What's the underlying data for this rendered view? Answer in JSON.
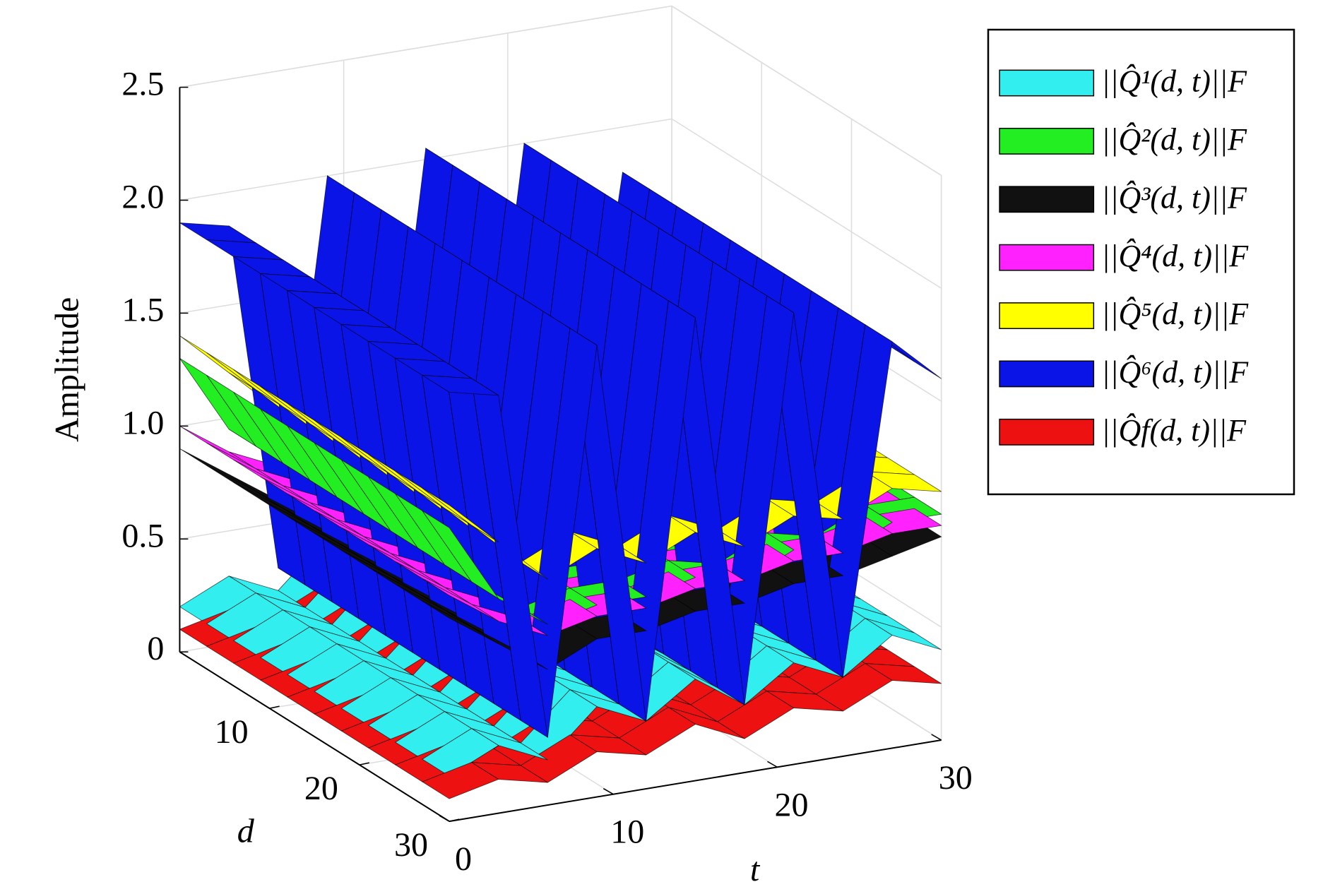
{
  "chart_data": {
    "type": "surface3d",
    "zlabel": "Amplitude",
    "xlabel": "t",
    "ylabel": "d",
    "x": [
      0,
      3,
      6,
      9,
      12,
      15,
      18,
      21,
      24,
      27,
      30
    ],
    "xlim": [
      0,
      30
    ],
    "xticks": [
      0,
      10,
      20,
      30
    ],
    "ylim": [
      0,
      30
    ],
    "yticks": [
      10,
      20,
      30
    ],
    "zlim": [
      0,
      2.5
    ],
    "zticks": [
      0,
      {
        "value": 0.5,
        "label": "0.5"
      },
      {
        "value": 1,
        "label": "1.0"
      },
      {
        "value": 1.5,
        "label": "1.5"
      },
      {
        "value": 2,
        "label": "2.0"
      },
      {
        "value": 2.5,
        "label": "2.5"
      }
    ],
    "grid": true,
    "legend": "outside-right",
    "series": [
      {
        "name": "||Q̂¹(d, t)||F",
        "color": "#33eeee",
        "values": [
          0.2,
          0.3,
          0.2,
          0.4,
          0.3,
          0.45,
          0.3,
          0.45,
          0.35,
          0.5,
          0.4
        ]
      },
      {
        "name": "||Q̂²(d, t)||F",
        "color": "#22ee22",
        "values": [
          1.3,
          0.95,
          0.8,
          0.85,
          0.85,
          0.9,
          0.85,
          0.95,
          0.9,
          1.0,
          1.0
        ]
      },
      {
        "name": "||Q̂³(d, t)||F",
        "color": "#111111",
        "values": [
          0.9,
          0.75,
          0.6,
          0.7,
          0.7,
          0.75,
          0.75,
          0.8,
          0.8,
          0.85,
          0.9
        ]
      },
      {
        "name": "||Q̂⁴(d, t)||F",
        "color": "#ff22ff",
        "values": [
          1.0,
          0.85,
          0.75,
          0.8,
          0.8,
          0.85,
          0.85,
          0.9,
          0.9,
          0.95,
          0.95
        ]
      },
      {
        "name": "||Q̂⁵(d, t)||F",
        "color": "#ffff00",
        "values": [
          1.4,
          1.2,
          1.0,
          1.1,
          1.0,
          1.1,
          1.0,
          1.1,
          1.05,
          1.15,
          1.1
        ]
      },
      {
        "name": "||Q̂⁶(d, t)||F",
        "color": "#0a14e6",
        "values": [
          1.9,
          1.85,
          0.3,
          2.0,
          0.3,
          2.05,
          0.3,
          2.0,
          0.35,
          1.8,
          1.6
        ]
      },
      {
        "name": "||Q̂f(d, t)||F",
        "color": "#ee1111",
        "values": [
          0.1,
          0.15,
          0.1,
          0.2,
          0.15,
          0.25,
          0.15,
          0.25,
          0.2,
          0.3,
          0.25
        ]
      }
    ]
  }
}
